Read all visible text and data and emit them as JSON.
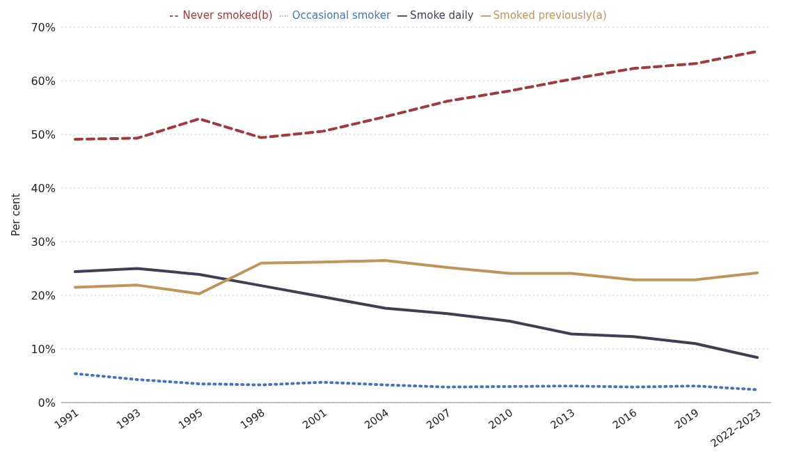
{
  "chart_data": {
    "type": "line",
    "ylabel": "Per cent",
    "categories": [
      "1991",
      "1993",
      "1995",
      "1998",
      "2001",
      "2004",
      "2007",
      "2010",
      "2013",
      "2016",
      "2019",
      "2022–2023"
    ],
    "series": [
      {
        "name": "Never smoked(b)",
        "color": "#a33a3a",
        "line_style": "dashed",
        "values": [
          49.1,
          49.3,
          52.9,
          49.4,
          50.6,
          53.3,
          56.2,
          58.1,
          60.3,
          62.3,
          63.2,
          65.5
        ]
      },
      {
        "name": "Occasional smoker",
        "color": "#4472c4",
        "line_style": "dotted",
        "values": [
          5.4,
          4.3,
          3.5,
          3.3,
          3.8,
          3.3,
          2.9,
          3.0,
          3.1,
          2.9,
          3.1,
          2.4
        ]
      },
      {
        "name": "Smoke daily",
        "color": "#3d3f56",
        "line_style": "solid",
        "values": [
          24.4,
          25.0,
          23.9,
          21.8,
          19.7,
          17.6,
          16.6,
          15.2,
          12.8,
          12.3,
          11.0,
          8.4
        ]
      },
      {
        "name": "Smoked previously(a)",
        "color": "#c0955a",
        "line_style": "solid",
        "values": [
          21.5,
          21.9,
          20.3,
          26.0,
          26.2,
          26.5,
          25.2,
          24.1,
          24.1,
          22.9,
          22.9,
          24.2
        ]
      }
    ],
    "ylim": [
      0,
      70
    ],
    "yticks": [
      {
        "value": 0,
        "label": "0%"
      },
      {
        "value": 10,
        "label": "10%"
      },
      {
        "value": 20,
        "label": "20%"
      },
      {
        "value": 30,
        "label": "30%"
      },
      {
        "value": 40,
        "label": "40%"
      },
      {
        "value": 50,
        "label": "50%"
      },
      {
        "value": 60,
        "label": "60%"
      },
      {
        "value": 70,
        "label": "70%"
      }
    ],
    "grid": "y",
    "legend": "top",
    "marker": "none"
  }
}
